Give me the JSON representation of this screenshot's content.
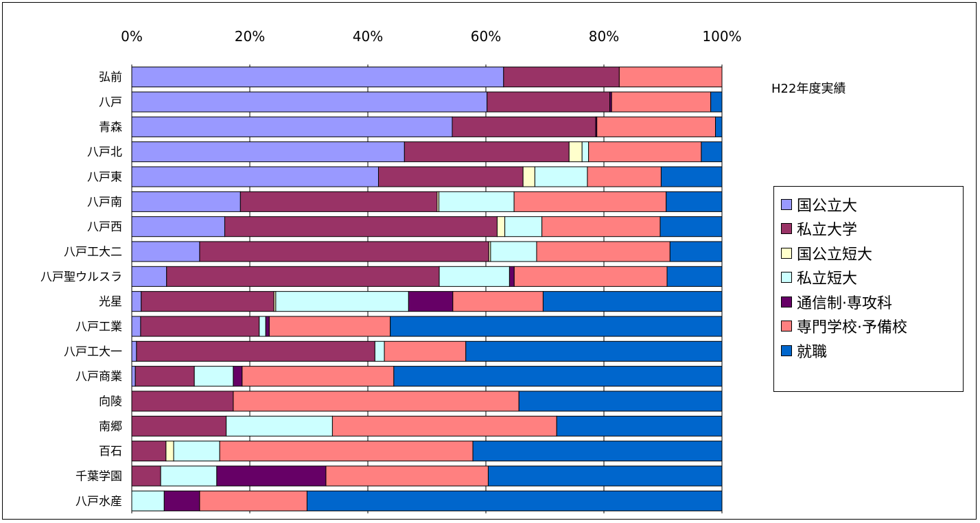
{
  "chart_data": {
    "type": "bar",
    "orientation": "horizontal",
    "stacked": "percent",
    "xlim": [
      0,
      100
    ],
    "x_ticks": [
      "0%",
      "20%",
      "40%",
      "60%",
      "80%",
      "100%"
    ],
    "grid": true,
    "legend_position": "right",
    "annotation": "H22年度実績",
    "categories": [
      "弘前",
      "八戸",
      "青森",
      "八戸北",
      "八戸東",
      "八戸南",
      "八戸西",
      "八戸工大二",
      "八戸聖ウルスラ",
      "光星",
      "八戸工業",
      "八戸工大一",
      "八戸商業",
      "向陵",
      "南郷",
      "百石",
      "千葉学園",
      "八戸水産"
    ],
    "series": [
      {
        "name": "国公立大",
        "color": "#9999ff",
        "values": [
          63,
          60.2,
          54.3,
          46.2,
          41.8,
          18.5,
          15.8,
          11.5,
          5.9,
          1.6,
          1.5,
          0.8,
          0.6,
          0,
          0,
          0,
          0,
          0
        ]
      },
      {
        "name": "私立大学",
        "color": "#993366",
        "values": [
          19.6,
          20.8,
          24.3,
          27.9,
          24.5,
          33.5,
          46.3,
          49,
          46.2,
          22.5,
          20.1,
          40.4,
          10,
          17.2,
          16,
          5.8,
          4.9,
          0
        ]
      },
      {
        "name": "国公立短大",
        "color": "#ffffcc",
        "values": [
          0,
          0,
          0,
          2.2,
          2,
          0.3,
          1.3,
          0.3,
          0,
          0.3,
          0,
          0,
          0,
          0,
          0,
          1.3,
          0,
          0
        ]
      },
      {
        "name": "私立短大",
        "color": "#ccffff",
        "values": [
          0,
          0,
          0,
          1.1,
          8.9,
          12.8,
          6.3,
          7.8,
          11.9,
          22.5,
          1.1,
          1.6,
          6.6,
          0,
          18,
          7.8,
          9.5,
          5.5
        ]
      },
      {
        "name": "通信制・専攻科",
        "color": "#660066",
        "values": [
          0,
          0.3,
          0.2,
          0,
          0,
          0,
          0,
          0,
          0.8,
          7.5,
          0.6,
          0,
          1.5,
          0,
          0,
          0,
          18.5,
          6
        ]
      },
      {
        "name": "専門学校・予備校",
        "color": "#ff8080",
        "values": [
          17.4,
          16.8,
          20.1,
          19.1,
          12.5,
          25.9,
          20.1,
          22.6,
          25.9,
          15.3,
          20.5,
          13.8,
          25.7,
          48.4,
          38,
          42.9,
          27.5,
          18.2
        ]
      },
      {
        "name": "就職",
        "color": "#0066cc",
        "values": [
          0,
          1.9,
          1.1,
          3.5,
          10.3,
          9.5,
          10.5,
          8.8,
          9.3,
          30.3,
          56.2,
          43.4,
          55.6,
          34.4,
          28,
          42.2,
          39.6,
          70.3
        ]
      }
    ]
  },
  "legend": {
    "items": [
      "国公立大",
      "私立大学",
      "国公立短大",
      "私立短大",
      "通信制·専攻科",
      "専門学校·予備校",
      "就職"
    ]
  }
}
